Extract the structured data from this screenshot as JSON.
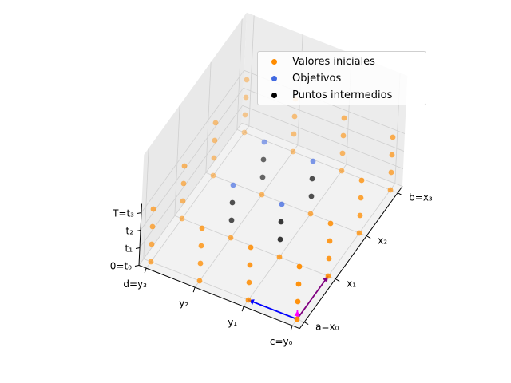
{
  "chart_data": {
    "type": "scatter",
    "projection": "3d",
    "grid": true,
    "legend_position": "top-right",
    "axes": {
      "x": {
        "ticks": [
          "a=x₀",
          "x₁",
          "x₂",
          "b=x₃"
        ],
        "range": [
          0,
          3
        ]
      },
      "y": {
        "ticks": [
          "c=y₀",
          "y₁",
          "y₂",
          "d=y₃"
        ],
        "range": [
          0,
          3
        ]
      },
      "z": {
        "ticks": [
          "0=t₀",
          "t₁",
          "t₂",
          "T=t₃"
        ],
        "range": [
          0,
          3
        ]
      }
    },
    "series": [
      {
        "name": "Valores iniciales",
        "color": "#ff8c00",
        "points": [
          [
            0,
            0,
            0
          ],
          [
            1,
            0,
            0
          ],
          [
            2,
            0,
            0
          ],
          [
            3,
            0,
            0
          ],
          [
            0,
            1,
            0
          ],
          [
            1,
            1,
            0
          ],
          [
            2,
            1,
            0
          ],
          [
            3,
            1,
            0
          ],
          [
            0,
            2,
            0
          ],
          [
            1,
            2,
            0
          ],
          [
            2,
            2,
            0
          ],
          [
            3,
            2,
            0
          ],
          [
            0,
            3,
            0
          ],
          [
            1,
            3,
            0
          ],
          [
            2,
            3,
            0
          ],
          [
            3,
            3,
            0
          ],
          [
            0,
            0,
            1
          ],
          [
            0,
            1,
            1
          ],
          [
            0,
            2,
            1
          ],
          [
            0,
            3,
            1
          ],
          [
            3,
            0,
            1
          ],
          [
            3,
            1,
            1
          ],
          [
            3,
            2,
            1
          ],
          [
            3,
            3,
            1
          ],
          [
            1,
            0,
            1
          ],
          [
            2,
            0,
            1
          ],
          [
            1,
            3,
            1
          ],
          [
            2,
            3,
            1
          ],
          [
            0,
            0,
            2
          ],
          [
            0,
            1,
            2
          ],
          [
            0,
            2,
            2
          ],
          [
            0,
            3,
            2
          ],
          [
            3,
            0,
            2
          ],
          [
            3,
            1,
            2
          ],
          [
            3,
            2,
            2
          ],
          [
            3,
            3,
            2
          ],
          [
            1,
            0,
            2
          ],
          [
            2,
            0,
            2
          ],
          [
            1,
            3,
            2
          ],
          [
            2,
            3,
            2
          ],
          [
            0,
            0,
            3
          ],
          [
            0,
            1,
            3
          ],
          [
            0,
            2,
            3
          ],
          [
            0,
            3,
            3
          ],
          [
            3,
            0,
            3
          ],
          [
            3,
            1,
            3
          ],
          [
            3,
            2,
            3
          ],
          [
            3,
            3,
            3
          ],
          [
            1,
            0,
            3
          ],
          [
            2,
            0,
            3
          ],
          [
            1,
            3,
            3
          ],
          [
            2,
            3,
            3
          ]
        ]
      },
      {
        "name": "Objetivos",
        "color": "#4169e1",
        "points": [
          [
            1,
            1,
            3
          ],
          [
            2,
            1,
            3
          ],
          [
            1,
            2,
            3
          ],
          [
            2,
            2,
            3
          ]
        ]
      },
      {
        "name": "Puntos intermedios",
        "color": "#000000",
        "points": [
          [
            1,
            1,
            1
          ],
          [
            2,
            1,
            1
          ],
          [
            1,
            2,
            1
          ],
          [
            2,
            2,
            1
          ],
          [
            1,
            1,
            2
          ],
          [
            2,
            1,
            2
          ],
          [
            1,
            2,
            2
          ],
          [
            2,
            2,
            2
          ]
        ]
      }
    ],
    "arrows": [
      {
        "color": "#0000ff",
        "from": [
          0,
          0,
          0
        ],
        "to": [
          0,
          1,
          0
        ]
      },
      {
        "color": "#800080",
        "from": [
          0,
          0,
          0
        ],
        "to": [
          1,
          0,
          0
        ]
      },
      {
        "color": "#ff00ff",
        "from": [
          0,
          0,
          0
        ],
        "to": [
          0,
          0,
          0.5
        ]
      }
    ],
    "legend": [
      "Valores iniciales",
      "Objetivos",
      "Puntos intermedios"
    ]
  }
}
